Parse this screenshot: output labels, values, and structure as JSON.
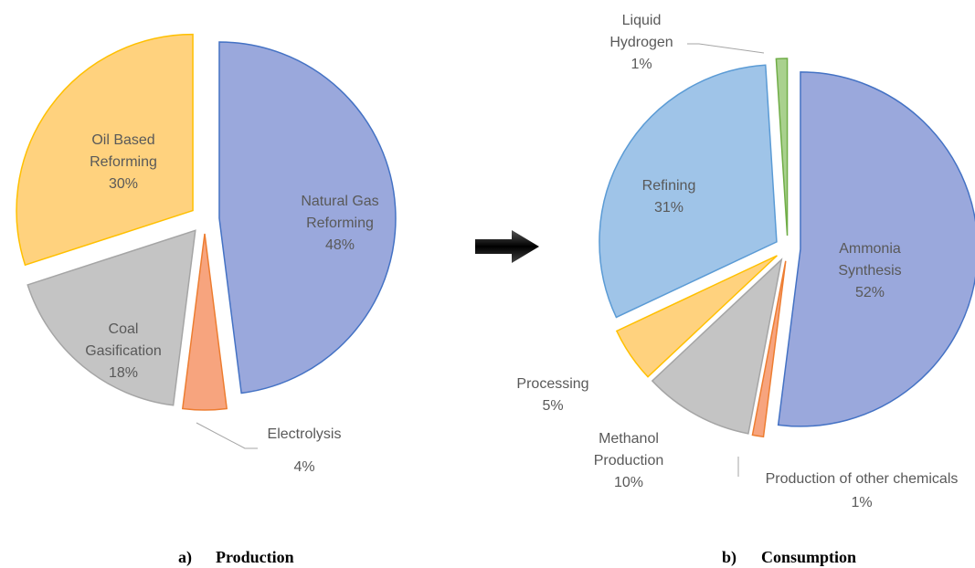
{
  "chart_data": [
    {
      "type": "pie",
      "caption_label": "a)",
      "caption": "Production",
      "categories": [
        "Natural Gas Reforming",
        "Electrolysis",
        "Coal Gasification",
        "Oil Based Reforming"
      ],
      "values": [
        48,
        4,
        18,
        30
      ],
      "value_labels": [
        "48%",
        "4%",
        "18%",
        "30%"
      ],
      "colors": [
        "#9aa8dc",
        "#f7a47e",
        "#c4c4c4",
        "#ffd27e"
      ],
      "edge_colors": [
        "#4472c4",
        "#ed7d31",
        "#a5a5a5",
        "#ffc000"
      ]
    },
    {
      "type": "pie",
      "caption_label": "b)",
      "caption": "Consumption",
      "categories": [
        "Ammonia Synthesis",
        "Production of other chemicals",
        "Methanol Production",
        "Processing",
        "Refining",
        "Liquid Hydrogen"
      ],
      "values": [
        52,
        1,
        10,
        5,
        31,
        1
      ],
      "value_labels": [
        "52%",
        "1%",
        "10%",
        "5%",
        "31%",
        "1%"
      ],
      "colors": [
        "#9aa8dc",
        "#f7a47e",
        "#c4c4c4",
        "#ffd27e",
        "#9fc4e8",
        "#a9d18e"
      ],
      "edge_colors": [
        "#4472c4",
        "#ed7d31",
        "#a5a5a5",
        "#ffc000",
        "#5b9bd5",
        "#70ad47"
      ]
    }
  ]
}
